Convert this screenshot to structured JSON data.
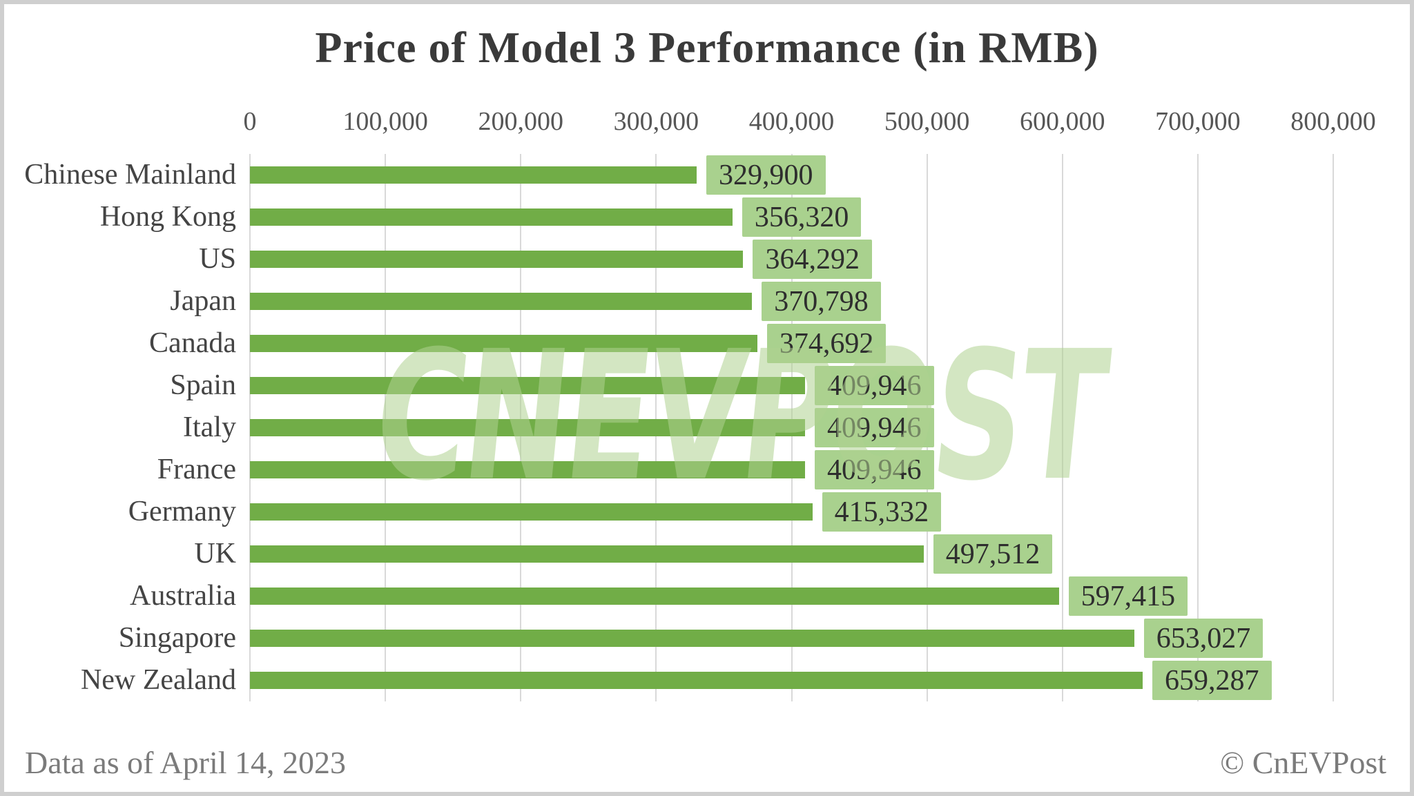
{
  "title": "Price of Model 3 Performance (in RMB)",
  "watermark": "CNEVPOST",
  "footer": {
    "left": "Data as of April 14, 2023",
    "right": "© CnEVPost"
  },
  "colors": {
    "bar": "#71AD47",
    "label_box": "#A9D18E",
    "value_text": "#2E2E2E",
    "gridline": "#D9D9D9",
    "title_text": "#3A3A3A",
    "axis_text": "#565656",
    "category_text": "#444444",
    "footer_text": "#7B7B7B",
    "watermark": "rgba(174,209,143,0.55)",
    "border": "#CFCFCF"
  },
  "chart_data": {
    "type": "bar",
    "orientation": "horizontal",
    "title": "Price of Model 3 Performance (in RMB)",
    "xlabel": "",
    "ylabel": "",
    "xlim": [
      0,
      800000
    ],
    "grid": "vertical",
    "legend": null,
    "x_ticks": [
      0,
      100000,
      200000,
      300000,
      400000,
      500000,
      600000,
      700000,
      800000
    ],
    "x_tick_labels": [
      "0",
      "100,000",
      "200,000",
      "300,000",
      "400,000",
      "500,000",
      "600,000",
      "700,000",
      "800,000"
    ],
    "categories": [
      "Chinese Mainland",
      "Hong Kong",
      "US",
      "Japan",
      "Canada",
      "Spain",
      "Italy",
      "France",
      "Germany",
      "UK",
      "Australia",
      "Singapore",
      "New Zealand"
    ],
    "values": [
      329900,
      356320,
      364292,
      370798,
      374692,
      409946,
      409946,
      409946,
      415332,
      497512,
      597415,
      653027,
      659287
    ],
    "value_labels": [
      "329,900",
      "356,320",
      "364,292",
      "370,798",
      "374,692",
      "409,946",
      "409,946",
      "409,946",
      "415,332",
      "497,512",
      "597,415",
      "653,027",
      "659,287"
    ]
  }
}
